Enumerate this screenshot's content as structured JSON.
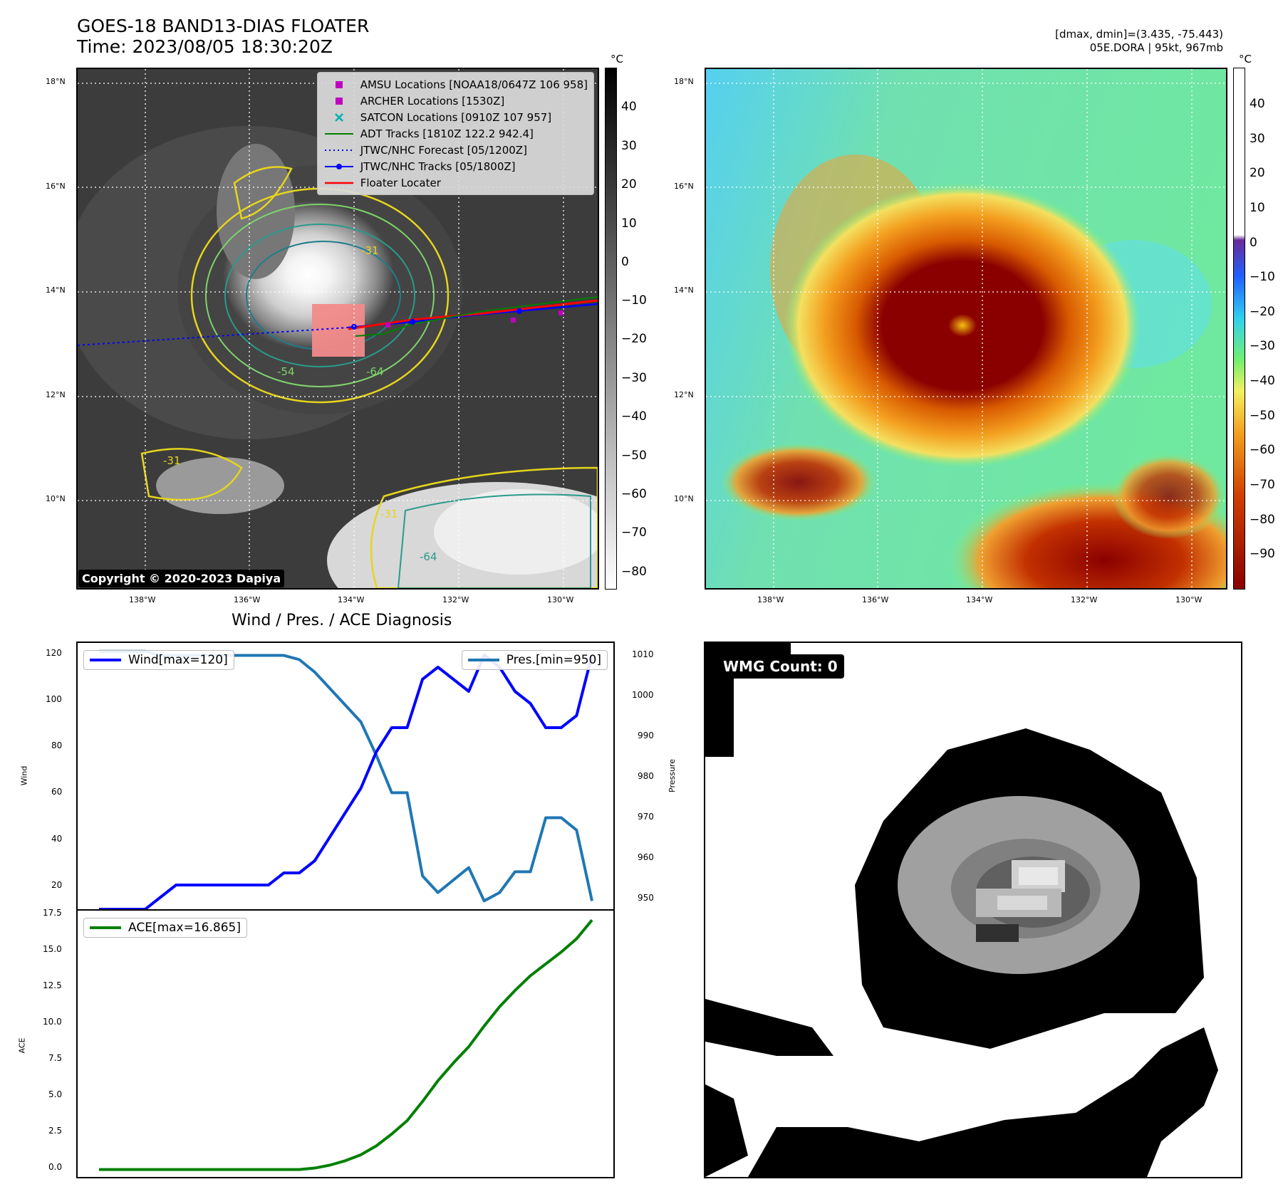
{
  "header": {
    "title_line1": "GOES-18 BAND13-DIAS FLOATER",
    "title_line2": "Time: 2023/08/05 18:30:20Z",
    "right_line1": "[dmax, dmin]=(3.435, -75.443)",
    "right_line2": "05E.DORA | 95kt, 967mb"
  },
  "map_left": {
    "lat_labels": [
      "18°N",
      "16°N",
      "14°N",
      "12°N",
      "10°N"
    ],
    "lon_labels": [
      "138°W",
      "136°W",
      "134°W",
      "132°W",
      "130°W"
    ],
    "legend": [
      {
        "label": "AMSU Locations [NOAA18/0647Z 106 958]",
        "color": "#c000c0",
        "icon": "square-marker"
      },
      {
        "label": "ARCHER Locations [1530Z]",
        "color": "#c000c0",
        "icon": "square-marker"
      },
      {
        "label": "SATCON Locations [0910Z 107 957]",
        "color": "#00b0b0",
        "icon": "x-marker"
      },
      {
        "label": "ADT Tracks [1810Z 122.2 942.4]",
        "color": "#008000",
        "icon": "solid-line"
      },
      {
        "label": "JTWC/NHC Forecast [05/1200Z]",
        "color": "#0000ff",
        "icon": "dotted-line"
      },
      {
        "label": "JTWC/NHC Tracks [05/1800Z]",
        "color": "#0000ff",
        "icon": "line-dot"
      },
      {
        "label": "Floater Locater",
        "color": "#ff0000",
        "icon": "solid-line"
      }
    ],
    "contour_labels": [
      "-31",
      "-54",
      "-64",
      "-31",
      "-64",
      "-31"
    ],
    "copyright": "Copyright © 2020-2023 Dapiya",
    "colorbar_unit": "°C",
    "colorbar_ticks": [
      "40",
      "30",
      "20",
      "10",
      "0",
      "−10",
      "−20",
      "−30",
      "−40",
      "−50",
      "−60",
      "−70",
      "−80"
    ]
  },
  "map_right": {
    "lat_labels": [
      "18°N",
      "16°N",
      "14°N",
      "12°N",
      "10°N"
    ],
    "lon_labels": [
      "138°W",
      "136°W",
      "134°W",
      "132°W",
      "130°W"
    ],
    "colorbar_unit": "°C",
    "colorbar_ticks": [
      "40",
      "30",
      "20",
      "10",
      "0",
      "−10",
      "−20",
      "−30",
      "−40",
      "−50",
      "−60",
      "−70",
      "−80",
      "−90"
    ]
  },
  "diagnosis": {
    "title": "Wind / Pres. / ACE Diagnosis",
    "wind_legend": "Wind[max=120]",
    "pres_legend": "Pres.[min=950]",
    "ace_legend": "ACE[max=16.865]",
    "wind_ylabel": "Wind",
    "pres_ylabel": "Pressure",
    "ace_ylabel": "ACE",
    "wind_ticks": [
      "120",
      "100",
      "80",
      "60",
      "40",
      "20"
    ],
    "pres_ticks": [
      "1010",
      "1000",
      "990",
      "980",
      "970",
      "960",
      "950"
    ],
    "ace_ticks": [
      "17.5",
      "15.0",
      "12.5",
      "10.0",
      "7.5",
      "5.0",
      "2.5",
      "0.0"
    ]
  },
  "wmg": {
    "label": "WMG Count: 0"
  },
  "chart_data": [
    {
      "type": "line",
      "title": "Wind / Pres. / ACE Diagnosis",
      "x": [
        0,
        1,
        2,
        3,
        4,
        5,
        6,
        7,
        8,
        9,
        10,
        11,
        12,
        13,
        14,
        15,
        16,
        17,
        18,
        19,
        20,
        21,
        22,
        23,
        24,
        25,
        26,
        27,
        28,
        29,
        30,
        31,
        32
      ],
      "series": [
        {
          "name": "Wind[max=120]",
          "axis": "left",
          "color": "#0000ff",
          "values": [
            15,
            15,
            15,
            15,
            20,
            25,
            25,
            25,
            25,
            25,
            25,
            25,
            30,
            30,
            35,
            45,
            55,
            65,
            80,
            90,
            90,
            110,
            115,
            110,
            105,
            120,
            115,
            105,
            100,
            90,
            90,
            95,
            120
          ]
        },
        {
          "name": "Pres.[min=950]",
          "axis": "right",
          "color": "#1f77b4",
          "values": [
            1010,
            1010,
            1010,
            1010,
            1009,
            1009,
            1009,
            1009,
            1009,
            1009,
            1009,
            1009,
            1009,
            1008,
            1005,
            1001,
            997,
            993,
            985,
            976,
            976,
            956,
            952,
            955,
            958,
            950,
            952,
            957,
            957,
            970,
            970,
            967,
            950
          ]
        }
      ],
      "ylim_left": [
        15,
        125
      ],
      "ylim_right": [
        948,
        1012
      ]
    },
    {
      "type": "line",
      "series": [
        {
          "name": "ACE[max=16.865]",
          "color": "#008000",
          "values": [
            0,
            0,
            0,
            0,
            0,
            0,
            0,
            0,
            0,
            0,
            0,
            0,
            0,
            0,
            0.1,
            0.3,
            0.6,
            1.0,
            1.6,
            2.4,
            3.3,
            4.6,
            6.0,
            7.2,
            8.3,
            9.7,
            11.0,
            12.1,
            13.1,
            13.9,
            14.7,
            15.6,
            16.865
          ]
        }
      ],
      "ylim": [
        -0.5,
        17.5
      ]
    }
  ]
}
